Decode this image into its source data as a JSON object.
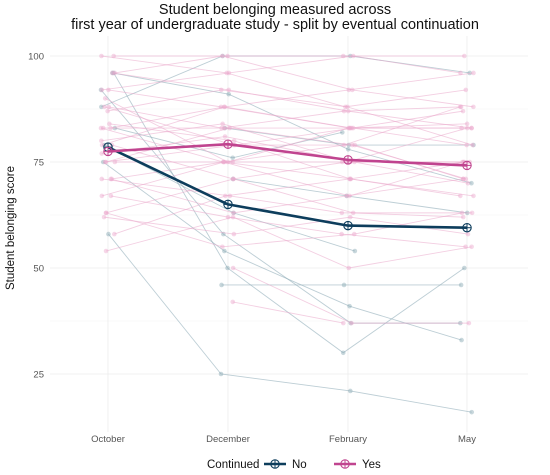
{
  "chart_data": {
    "type": "line",
    "title_line1": "Student belonging measured across",
    "title_line2": "first year of undergraduate study - split by eventual continuation",
    "xlabel": "",
    "ylabel": "Student belonging score",
    "categories": [
      "October",
      "December",
      "February",
      "May"
    ],
    "y_ticks": [
      25,
      50,
      75,
      100
    ],
    "ylim": [
      15,
      102
    ],
    "grid": true,
    "legend": {
      "title": "Continued",
      "placement": "bottom",
      "entries": [
        "No",
        "Yes"
      ]
    },
    "colors": {
      "No": "#0d3d5c",
      "Yes": "#c0448f",
      "No_faint": "#86a6b2",
      "Yes_faint": "#eaa7cb",
      "grid": "#ececec"
    },
    "series": [
      {
        "name": "No",
        "values": [
          78.5,
          65.0,
          60.0,
          59.5
        ]
      },
      {
        "name": "Yes",
        "values": [
          77.5,
          79.2,
          75.5,
          74.2
        ]
      }
    ],
    "individual_no": [
      [
        96,
        50,
        30,
        50
      ],
      [
        96,
        91,
        78,
        70
      ],
      [
        58,
        25,
        21,
        16
      ],
      [
        null,
        46,
        46,
        46
      ],
      [
        79,
        63,
        54,
        null
      ],
      [
        75,
        54,
        41,
        33
      ],
      [
        92,
        58,
        37,
        37
      ],
      [
        88,
        100,
        100,
        96
      ],
      [
        null,
        83,
        79,
        79
      ],
      [
        null,
        71,
        67,
        63
      ],
      [
        83,
        76,
        82,
        null
      ]
    ],
    "individual_yes": [
      [
        100,
        100,
        100,
        100
      ],
      [
        96,
        92,
        87,
        83
      ],
      [
        92,
        88,
        83,
        83
      ],
      [
        88,
        83,
        87,
        88
      ],
      [
        88,
        79,
        79,
        71
      ],
      [
        83,
        83,
        83,
        83
      ],
      [
        83,
        75,
        71,
        67
      ],
      [
        80,
        84,
        75,
        75
      ],
      [
        79,
        88,
        92,
        96
      ],
      [
        79,
        71,
        75,
        83
      ],
      [
        75,
        75,
        75,
        75
      ],
      [
        75,
        83,
        79,
        71
      ],
      [
        71,
        67,
        63,
        63
      ],
      [
        71,
        75,
        67,
        75
      ],
      [
        67,
        62,
        58,
        55
      ],
      [
        67,
        75,
        79,
        88
      ],
      [
        63,
        71,
        63,
        62
      ],
      [
        63,
        55,
        58,
        63
      ],
      [
        58,
        67,
        71,
        75
      ],
      [
        54,
        62,
        50,
        55
      ],
      [
        100,
        96,
        88,
        92
      ],
      [
        96,
        100,
        92,
        88
      ],
      [
        92,
        96,
        100,
        96
      ],
      [
        87,
        92,
        88,
        79
      ],
      [
        83,
        88,
        83,
        87
      ],
      [
        75,
        79,
        83,
        79
      ],
      [
        71,
        63,
        67,
        71
      ],
      [
        62,
        58,
        62,
        58
      ],
      [
        null,
        50,
        37,
        37
      ],
      [
        null,
        42,
        37,
        null
      ],
      [
        84,
        80,
        71,
        67
      ],
      [
        77,
        81,
        75,
        70
      ],
      [
        90,
        75,
        83,
        84
      ]
    ]
  }
}
